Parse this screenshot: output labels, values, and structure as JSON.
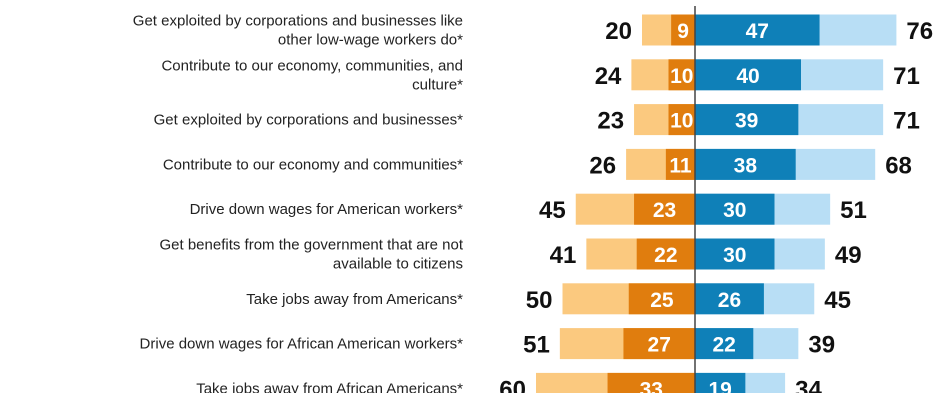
{
  "chart_data": {
    "type": "bar",
    "title": "",
    "xlabel": "",
    "ylabel": "",
    "categories": [
      [
        "Get exploited by corporations and businesses like",
        "other low-wage workers do*"
      ],
      [
        "Contribute to our economy, communities, and",
        "culture*"
      ],
      [
        "Get exploited by corporations and businesses*"
      ],
      [
        "Contribute to our economy and communities*"
      ],
      [
        "Drive down wages for American workers*"
      ],
      [
        "Get benefits from the government that are not",
        "available to citizens"
      ],
      [
        "Take jobs away from Americans*"
      ],
      [
        "Drive down wages for African American workers*"
      ],
      [
        "Take jobs away from African Americans*"
      ]
    ],
    "series": [
      {
        "key": "neg_total",
        "values": [
          20,
          24,
          23,
          26,
          45,
          41,
          50,
          51,
          60
        ]
      },
      {
        "key": "neg_strong",
        "values": [
          9,
          10,
          10,
          11,
          23,
          22,
          25,
          27,
          33
        ]
      },
      {
        "key": "pos_strong",
        "values": [
          47,
          40,
          39,
          38,
          30,
          30,
          26,
          22,
          19
        ]
      },
      {
        "key": "pos_total",
        "values": [
          76,
          71,
          71,
          68,
          51,
          49,
          45,
          39,
          34
        ]
      }
    ],
    "colors": {
      "neg_total": "#fbc97f",
      "neg_strong": "#e07d0e",
      "pos_strong": "#0f80b8",
      "pos_total": "#b8def5",
      "divider": "#444444"
    },
    "grid": false,
    "legend": "none"
  }
}
